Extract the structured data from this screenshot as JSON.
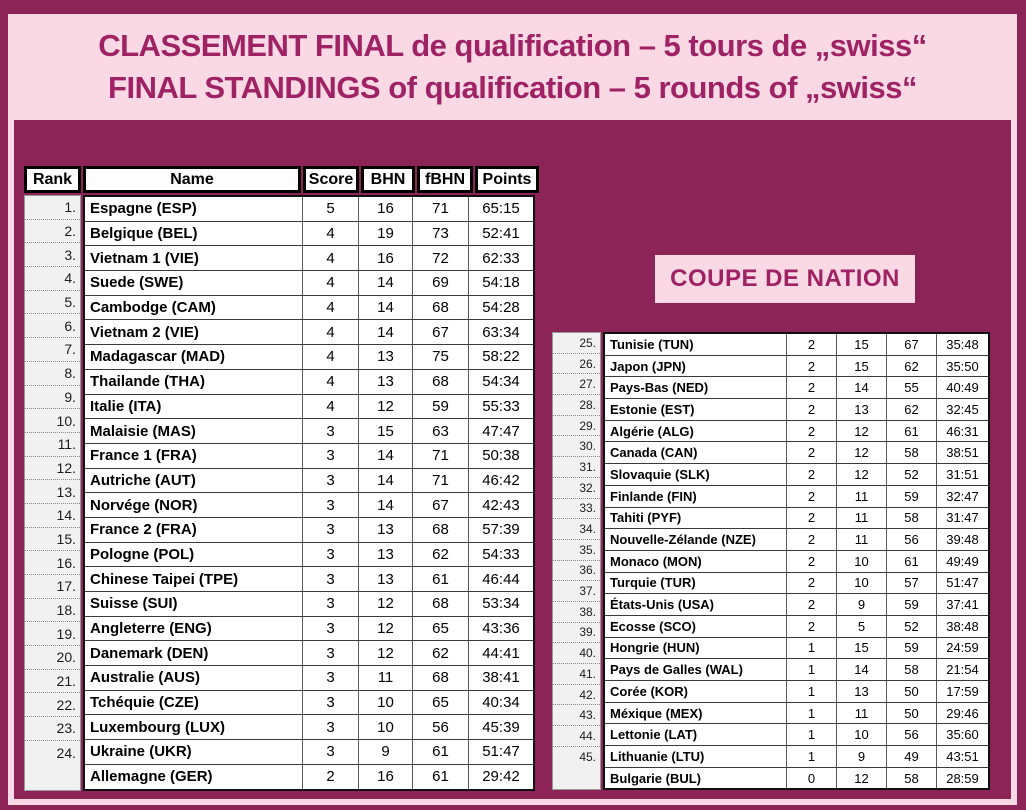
{
  "title": {
    "line1": "CLASSEMENT FINAL de qualification – 5 tours de  „swiss“",
    "line2": "FINAL STANDINGS of qualification – 5 rounds of „swiss“"
  },
  "coupe_label": "COUPE DE NATION",
  "table": {
    "headers": [
      "Rank",
      "Name",
      "Score",
      "BHN",
      "fBHN",
      "Points"
    ],
    "left_rows": [
      {
        "rank": "1.",
        "name": "Espagne (ESP)",
        "score": "5",
        "bhn": "16",
        "fbhn": "71",
        "points": "65:15"
      },
      {
        "rank": "2.",
        "name": "Belgique (BEL)",
        "score": "4",
        "bhn": "19",
        "fbhn": "73",
        "points": "52:41"
      },
      {
        "rank": "3.",
        "name": "Vietnam 1 (VIE)",
        "score": "4",
        "bhn": "16",
        "fbhn": "72",
        "points": "62:33"
      },
      {
        "rank": "4.",
        "name": "Suede (SWE)",
        "score": "4",
        "bhn": "14",
        "fbhn": "69",
        "points": "54:18"
      },
      {
        "rank": "5.",
        "name": "Cambodge (CAM)",
        "score": "4",
        "bhn": "14",
        "fbhn": "68",
        "points": "54:28"
      },
      {
        "rank": "6.",
        "name": "Vietnam 2 (VIE)",
        "score": "4",
        "bhn": "14",
        "fbhn": "67",
        "points": "63:34"
      },
      {
        "rank": "7.",
        "name": "Madagascar (MAD)",
        "score": "4",
        "bhn": "13",
        "fbhn": "75",
        "points": "58:22"
      },
      {
        "rank": "8.",
        "name": "Thailande (THA)",
        "score": "4",
        "bhn": "13",
        "fbhn": "68",
        "points": "54:34"
      },
      {
        "rank": "9.",
        "name": "Italie (ITA)",
        "score": "4",
        "bhn": "12",
        "fbhn": "59",
        "points": "55:33"
      },
      {
        "rank": "10.",
        "name": "Malaisie (MAS)",
        "score": "3",
        "bhn": "15",
        "fbhn": "63",
        "points": "47:47"
      },
      {
        "rank": "11.",
        "name": "France 1 (FRA)",
        "score": "3",
        "bhn": "14",
        "fbhn": "71",
        "points": "50:38"
      },
      {
        "rank": "12.",
        "name": "Autriche (AUT)",
        "score": "3",
        "bhn": "14",
        "fbhn": "71",
        "points": "46:42"
      },
      {
        "rank": "13.",
        "name": "Norvége (NOR)",
        "score": "3",
        "bhn": "14",
        "fbhn": "67",
        "points": "42:43"
      },
      {
        "rank": "14.",
        "name": "France 2 (FRA)",
        "score": "3",
        "bhn": "13",
        "fbhn": "68",
        "points": "57:39"
      },
      {
        "rank": "15.",
        "name": "Pologne (POL)",
        "score": "3",
        "bhn": "13",
        "fbhn": "62",
        "points": "54:33"
      },
      {
        "rank": "16.",
        "name": "Chinese Taipei (TPE)",
        "score": "3",
        "bhn": "13",
        "fbhn": "61",
        "points": "46:44"
      },
      {
        "rank": "17.",
        "name": "Suisse (SUI)",
        "score": "3",
        "bhn": "12",
        "fbhn": "68",
        "points": "53:34"
      },
      {
        "rank": "18.",
        "name": "Angleterre (ENG)",
        "score": "3",
        "bhn": "12",
        "fbhn": "65",
        "points": "43:36"
      },
      {
        "rank": "19.",
        "name": "Danemark (DEN)",
        "score": "3",
        "bhn": "12",
        "fbhn": "62",
        "points": "44:41"
      },
      {
        "rank": "20.",
        "name": "Australie (AUS)",
        "score": "3",
        "bhn": "11",
        "fbhn": "68",
        "points": "38:41"
      },
      {
        "rank": "21.",
        "name": "Tchéquie (CZE)",
        "score": "3",
        "bhn": "10",
        "fbhn": "65",
        "points": "40:34"
      },
      {
        "rank": "22.",
        "name": "Luxembourg (LUX)",
        "score": "3",
        "bhn": "10",
        "fbhn": "56",
        "points": "45:39"
      },
      {
        "rank": "23.",
        "name": "Ukraine (UKR)",
        "score": "3",
        "bhn": "9",
        "fbhn": "61",
        "points": "51:47"
      },
      {
        "rank": "24.",
        "name": "Allemagne (GER)",
        "score": "2",
        "bhn": "16",
        "fbhn": "61",
        "points": "29:42"
      }
    ],
    "right_rows": [
      {
        "rank": "25.",
        "name": "Tunisie (TUN)",
        "score": "2",
        "bhn": "15",
        "fbhn": "67",
        "points": "35:48"
      },
      {
        "rank": "26.",
        "name": "Japon (JPN)",
        "score": "2",
        "bhn": "15",
        "fbhn": "62",
        "points": "35:50"
      },
      {
        "rank": "27.",
        "name": "Pays-Bas (NED)",
        "score": "2",
        "bhn": "14",
        "fbhn": "55",
        "points": "40:49"
      },
      {
        "rank": "28.",
        "name": "Estonie (EST)",
        "score": "2",
        "bhn": "13",
        "fbhn": "62",
        "points": "32:45"
      },
      {
        "rank": "29.",
        "name": "Algérie (ALG)",
        "score": "2",
        "bhn": "12",
        "fbhn": "61",
        "points": "46:31"
      },
      {
        "rank": "30.",
        "name": "Canada (CAN)",
        "score": "2",
        "bhn": "12",
        "fbhn": "58",
        "points": "38:51"
      },
      {
        "rank": "31.",
        "name": "Slovaquie (SLK)",
        "score": "2",
        "bhn": "12",
        "fbhn": "52",
        "points": "31:51"
      },
      {
        "rank": "32.",
        "name": "Finlande (FIN)",
        "score": "2",
        "bhn": "11",
        "fbhn": "59",
        "points": "32:47"
      },
      {
        "rank": "33.",
        "name": "Tahiti (PYF)",
        "score": "2",
        "bhn": "11",
        "fbhn": "58",
        "points": "31:47"
      },
      {
        "rank": "34.",
        "name": "Nouvelle-Zélande (NZE)",
        "score": "2",
        "bhn": "11",
        "fbhn": "56",
        "points": "39:48"
      },
      {
        "rank": "35.",
        "name": "Monaco (MON)",
        "score": "2",
        "bhn": "10",
        "fbhn": "61",
        "points": "49:49"
      },
      {
        "rank": "36.",
        "name": "Turquie (TUR)",
        "score": "2",
        "bhn": "10",
        "fbhn": "57",
        "points": "51:47"
      },
      {
        "rank": "37.",
        "name": "États-Unis (USA)",
        "score": "2",
        "bhn": "9",
        "fbhn": "59",
        "points": "37:41"
      },
      {
        "rank": "38.",
        "name": "Ecosse (SCO)",
        "score": "2",
        "bhn": "5",
        "fbhn": "52",
        "points": "38:48"
      },
      {
        "rank": "39.",
        "name": "Hongrie (HUN)",
        "score": "1",
        "bhn": "15",
        "fbhn": "59",
        "points": "24:59"
      },
      {
        "rank": "40.",
        "name": "Pays de Galles (WAL)",
        "score": "1",
        "bhn": "14",
        "fbhn": "58",
        "points": "21:54"
      },
      {
        "rank": "41.",
        "name": "Corée (KOR)",
        "score": "1",
        "bhn": "13",
        "fbhn": "50",
        "points": "17:59"
      },
      {
        "rank": "42.",
        "name": "Méxique (MEX)",
        "score": "1",
        "bhn": "11",
        "fbhn": "50",
        "points": "29:46"
      },
      {
        "rank": "43.",
        "name": "Lettonie (LAT)",
        "score": "1",
        "bhn": "10",
        "fbhn": "56",
        "points": "35:60"
      },
      {
        "rank": "44.",
        "name": "Lithuanie (LTU)",
        "score": "1",
        "bhn": "9",
        "fbhn": "49",
        "points": "43:51"
      },
      {
        "rank": "45.",
        "name": "Bulgarie (BUL)",
        "score": "0",
        "bhn": "12",
        "fbhn": "58",
        "points": "28:59"
      }
    ]
  },
  "colors": {
    "background": "#8d2457",
    "panel_pink": "#fad9e5",
    "accent_text": "#9e2264",
    "grid_black": "#000000"
  }
}
